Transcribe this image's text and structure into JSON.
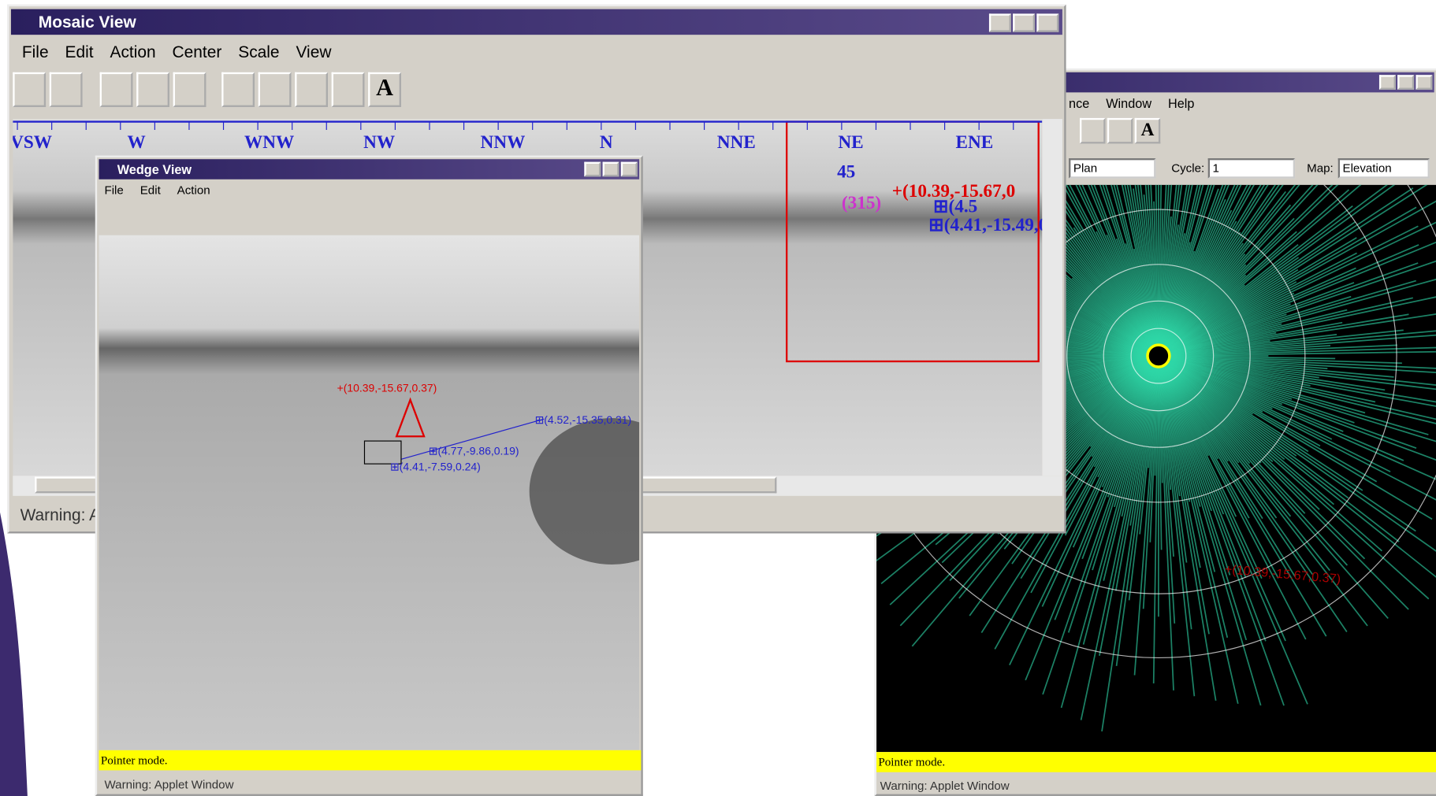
{
  "mosaic": {
    "title": "Mosaic View",
    "menu": [
      "File",
      "Edit",
      "Action",
      "Center",
      "Scale",
      "View"
    ],
    "tool_text": "A",
    "compass": [
      "VSW",
      "W",
      "WNW",
      "NW",
      "NNW",
      "N",
      "NNE",
      "NE",
      "ENE"
    ],
    "inset": {
      "heading": "45",
      "heading_back": "(315)",
      "point": "+(10.39,-15.67,0",
      "point2": "⊞(4.5",
      "point3": "⊞(4.41,-15.49,0"
    },
    "status": "Warning: A"
  },
  "wedge": {
    "title": "Wedge View",
    "menu": [
      "File",
      "Edit",
      "Action"
    ],
    "annotations": [
      "+(10.39,-15.67,0.37)",
      "⊞(4.52,-15.35,0.31)",
      "⊞(4.77,-9.86,0.19)",
      "⊞(4.41,-7.59,0.24)"
    ],
    "mode": "Pointer mode.",
    "status": "Warning: Applet Window"
  },
  "map": {
    "menu": [
      "nce",
      "Window",
      "Help"
    ],
    "tool_text": "A",
    "view": "Plan",
    "cycle_label": "Cycle:",
    "cycle": "1",
    "map_label": "Map:",
    "map": "Elevation",
    "annotation": "+(10.39,-15.67,0.37)",
    "mode": "Pointer mode.",
    "status": "Warning: Applet Window"
  }
}
